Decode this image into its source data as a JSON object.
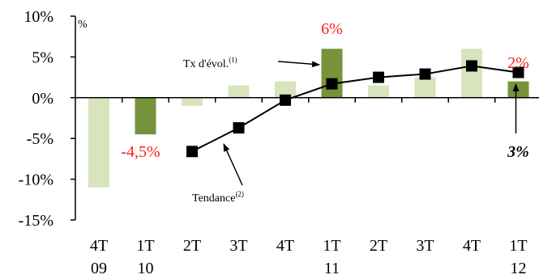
{
  "chart_data": {
    "type": "bar",
    "title": "",
    "unit_label": "%",
    "categories": [
      {
        "quarter": "4T",
        "year": "09"
      },
      {
        "quarter": "1T",
        "year": "10"
      },
      {
        "quarter": "2T",
        "year": ""
      },
      {
        "quarter": "3T",
        "year": ""
      },
      {
        "quarter": "4T",
        "year": ""
      },
      {
        "quarter": "1T",
        "year": "11"
      },
      {
        "quarter": "2T",
        "year": ""
      },
      {
        "quarter": "3T",
        "year": ""
      },
      {
        "quarter": "4T",
        "year": ""
      },
      {
        "quarter": "1T",
        "year": "12"
      }
    ],
    "ylim": [
      -15,
      10
    ],
    "yticks": [
      10,
      5,
      0,
      -5,
      -10,
      -15
    ],
    "ytick_labels": [
      "10%",
      "5%",
      "0%",
      "-5%",
      "-10%",
      "-15%"
    ],
    "colors": {
      "bar_light": "#d8e4bc",
      "bar_dark": "#76933c",
      "line": "#000000",
      "label": "#ff1a1a"
    },
    "series": [
      {
        "type": "bar",
        "values": [
          -11,
          -4.5,
          -1,
          1.5,
          2,
          6,
          1.5,
          2.5,
          6,
          2
        ],
        "highlight": [
          false,
          true,
          false,
          false,
          false,
          true,
          false,
          false,
          false,
          true
        ]
      },
      {
        "type": "line",
        "marker": "square",
        "values": [
          null,
          null,
          -6.6,
          -3.7,
          -0.3,
          1.7,
          2.5,
          2.9,
          3.9,
          3.1
        ]
      }
    ],
    "data_labels": [
      {
        "index": 1,
        "text": "-4,5%"
      },
      {
        "index": 5,
        "text": "6%"
      },
      {
        "index": 9,
        "text": "2%"
      }
    ],
    "trend_label": "3%",
    "annotations": {
      "tx_evol": {
        "text": "Tx d'évol.",
        "sup": "(1)"
      },
      "tendance": {
        "text": "Tendance",
        "sup": "(2)"
      }
    }
  }
}
